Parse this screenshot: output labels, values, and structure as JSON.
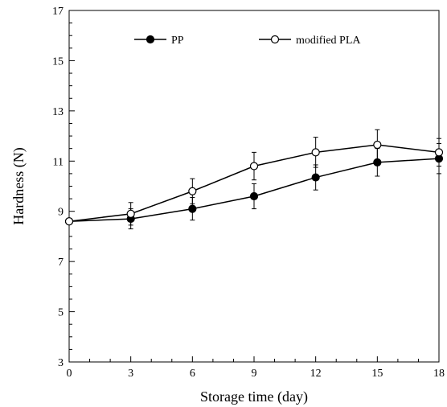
{
  "chart_data": {
    "type": "line",
    "title": "",
    "xlabel": "Storage time (day)",
    "ylabel": "Hardness (N)",
    "xlim": [
      0,
      18
    ],
    "ylim": [
      3,
      17
    ],
    "x_ticks": [
      0,
      3,
      6,
      9,
      12,
      15,
      18
    ],
    "y_ticks": [
      3,
      5,
      7,
      9,
      11,
      13,
      15,
      17
    ],
    "grid": false,
    "legend_placement": "top",
    "series": [
      {
        "name": "PP",
        "marker": "filled-circle",
        "color": "#000000",
        "x": [
          0,
          3,
          6,
          9,
          12,
          15,
          18
        ],
        "y": [
          8.6,
          8.7,
          9.1,
          9.6,
          10.35,
          10.95,
          11.1
        ],
        "error": [
          0.05,
          0.4,
          0.45,
          0.5,
          0.5,
          0.55,
          0.6
        ]
      },
      {
        "name": "modified PLA",
        "marker": "open-circle",
        "color": "#000000",
        "x": [
          0,
          3,
          6,
          9,
          12,
          15,
          18
        ],
        "y": [
          8.6,
          8.9,
          9.8,
          10.8,
          11.35,
          11.65,
          11.35
        ],
        "error": [
          0.05,
          0.45,
          0.5,
          0.55,
          0.6,
          0.6,
          0.55
        ]
      }
    ]
  }
}
